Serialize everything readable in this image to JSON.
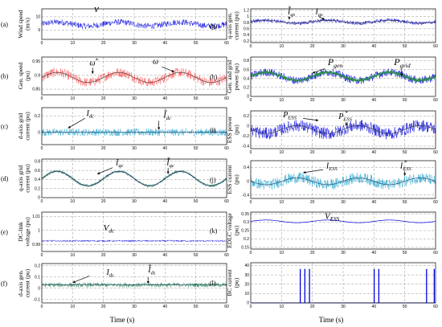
{
  "x_axis_label": "Time (s)",
  "x_ticks": [
    "0",
    "10",
    "20",
    "30",
    "40",
    "50",
    "60"
  ],
  "chart_data": [
    {
      "type": "line",
      "panel": "(a)",
      "ylabel": [
        "Wind speed",
        "(m/s)"
      ],
      "yticks": [
        "9",
        "10"
      ],
      "ylim": [
        8.3,
        10.6
      ],
      "xlim": [
        0,
        60
      ],
      "grid": true,
      "series": [
        {
          "label": "v",
          "color": "#0000dd",
          "base": 9.45,
          "amp": 0.15,
          "period": 20,
          "phase": 0,
          "noise": 0.45,
          "lw": 0.45
        }
      ],
      "annotations": [
        {
          "main": "v",
          "sup": "",
          "sub": "",
          "at": [
            17,
            10.35
          ],
          "size": 13
        }
      ],
      "arrows": []
    },
    {
      "type": "line",
      "panel": "(b)",
      "ylabel": [
        "Gen. speed",
        "(pu)"
      ],
      "yticks": [
        "0.85",
        "0.9",
        "0.95"
      ],
      "ylim": [
        0.83,
        0.965
      ],
      "xlim": [
        0,
        60
      ],
      "grid": true,
      "series": [
        {
          "label": "ω",
          "color": "#ff5050",
          "base": 0.892,
          "amp": 0.018,
          "period": 20,
          "phase": 0,
          "noise": 0.034,
          "lw": 0.45
        },
        {
          "label": "ω*",
          "color": "#333333",
          "base": 0.892,
          "amp": 0.018,
          "period": 20,
          "phase": 0,
          "noise": 0.0,
          "lw": 0.6
        }
      ],
      "annotations": [
        {
          "main": "ω",
          "sup": "*",
          "sub": "",
          "at": [
            15.5,
            0.935
          ],
          "size": 10
        },
        {
          "main": "ω",
          "sup": "",
          "sub": "",
          "at": [
            36,
            0.94
          ],
          "size": 10
        }
      ],
      "arrows": [
        {
          "from": [
            16.5,
            0.927
          ],
          "to": [
            16.5,
            0.905
          ]
        },
        {
          "from": [
            39,
            0.93
          ],
          "to": [
            43,
            0.912
          ]
        }
      ]
    },
    {
      "type": "line",
      "panel": "(c)",
      "ylabel": [
        "d-axis grid",
        "current (pu)"
      ],
      "yticks": [
        "0.2",
        "0"
      ],
      "ylim": [
        -0.15,
        0.3
      ],
      "xlim": [
        0,
        60
      ],
      "grid": true,
      "series": [
        {
          "label": "I_dc",
          "color": "#2aa9cf",
          "base": 0.0,
          "amp": 0.0,
          "period": 20,
          "phase": 0,
          "noise": 0.09,
          "lw": 0.45
        },
        {
          "label": "I_dc*",
          "color": "#1a3a6a",
          "base": 0.0,
          "amp": 0.0,
          "period": 20,
          "phase": 0,
          "noise": 0.0,
          "lw": 0.6
        }
      ],
      "annotations": [
        {
          "main": "I",
          "sup": "",
          "sub": "dc",
          "at": [
            14.5,
            0.2
          ],
          "size": 10
        },
        {
          "main": "I",
          "sup": "*",
          "sub": "dc",
          "at": [
            39.5,
            0.18
          ],
          "size": 10
        }
      ],
      "arrows": [
        {
          "from": [
            14,
            0.17
          ],
          "to": [
            8.5,
            0.05
          ]
        },
        {
          "from": [
            38,
            0.14
          ],
          "to": [
            38,
            0.03
          ]
        }
      ]
    },
    {
      "type": "line",
      "panel": "(d)",
      "ylabel": [
        "q-axis grid",
        "current (pu)"
      ],
      "yticks": [
        "0.8",
        "0.6",
        "0.4",
        "0.2",
        "0"
      ],
      "ylim": [
        0,
        0.85
      ],
      "xlim": [
        0,
        60
      ],
      "grid": true,
      "series": [
        {
          "label": "I_qc",
          "color": "#2e8b57",
          "base": 0.42,
          "amp": 0.16,
          "period": 20,
          "phase": 0,
          "noise": 0.07,
          "lw": 0.45
        },
        {
          "label": "I_qc*",
          "color": "#1a3a6a",
          "base": 0.42,
          "amp": 0.16,
          "period": 20,
          "phase": 0,
          "noise": 0.0,
          "lw": 0.9
        }
      ],
      "annotations": [
        {
          "main": "I",
          "sup": "",
          "sub": "qc",
          "at": [
            24,
            0.72
          ],
          "size": 10
        },
        {
          "main": "I",
          "sup": "*",
          "sub": "qc",
          "at": [
            40.5,
            0.72
          ],
          "size": 10
        }
      ],
      "arrows": [
        {
          "from": [
            23,
            0.66
          ],
          "to": [
            18,
            0.52
          ]
        },
        {
          "from": [
            41,
            0.66
          ],
          "to": [
            41,
            0.52
          ]
        }
      ]
    },
    {
      "type": "line",
      "panel": "(e)",
      "ylabel": [
        "DC-link",
        "voltage (pu)"
      ],
      "yticks": [
        "1.01",
        "1",
        "0.99"
      ],
      "ylim": [
        0.985,
        1.013
      ],
      "xlim": [
        0,
        60
      ],
      "grid": true,
      "series": [
        {
          "label": "V_dc",
          "color": "#0000dd",
          "base": 0.9925,
          "amp": 0.0,
          "period": 20,
          "phase": 0,
          "noise": 0.0012,
          "lw": 0.45
        }
      ],
      "annotations": [
        {
          "main": "V",
          "sup": "",
          "sub": "dc",
          "at": [
            20,
            1.0
          ],
          "size": 11
        }
      ],
      "arrows": []
    },
    {
      "type": "line",
      "panel": "(f)",
      "ylabel": [
        "d-axis gen.",
        "current (pu)"
      ],
      "yticks": [
        "0.2",
        "0.1",
        "0",
        "-0.1"
      ],
      "ylim": [
        -0.13,
        0.22
      ],
      "xlim": [
        0,
        60
      ],
      "grid": true,
      "series": [
        {
          "label": "I_ds",
          "color": "#2e8b57",
          "base": 0.03,
          "amp": 0.0,
          "period": 20,
          "phase": 0,
          "noise": 0.04,
          "lw": 0.45
        },
        {
          "label": "I_ds*",
          "color": "#1a3a6a",
          "base": 0.03,
          "amp": 0.0,
          "period": 20,
          "phase": 0,
          "noise": 0.0,
          "lw": 0.6
        }
      ],
      "annotations": [
        {
          "main": "I",
          "sup": "",
          "sub": "ds",
          "at": [
            21,
            0.12
          ],
          "size": 10
        },
        {
          "main": "I",
          "sup": "*",
          "sub": "ds",
          "at": [
            34.5,
            0.14
          ],
          "size": 10
        }
      ],
      "arrows": [
        {
          "from": [
            15.5,
            0.11
          ],
          "to": [
            10,
            0.05
          ]
        },
        {
          "from": [
            34.5,
            0.1
          ],
          "to": [
            34.5,
            0.04
          ]
        }
      ]
    },
    {
      "type": "line",
      "panel": "(g)",
      "ylabel": [
        "q-axis gen.",
        "current (pu)"
      ],
      "yticks": [
        "1.2",
        "1",
        "0.8",
        "0.6",
        "0.4",
        "0.2"
      ],
      "ylim": [
        0.15,
        1.25
      ],
      "xlim": [
        0,
        60
      ],
      "grid": true,
      "series": [
        {
          "label": "I_qs",
          "color": "#0000dd",
          "base": 0.83,
          "amp": 0.05,
          "period": 20,
          "phase": 0,
          "noise": 0.12,
          "lw": 0.45
        },
        {
          "label": "I_qs*",
          "color": "#333333",
          "base": 0.83,
          "amp": 0.05,
          "period": 20,
          "phase": 0,
          "noise": 0.0,
          "lw": 0.6
        }
      ],
      "annotations": [
        {
          "main": "I",
          "sup": "*",
          "sub": "qs",
          "at": [
            12,
            1.08
          ],
          "size": 10
        },
        {
          "main": "I",
          "sup": "",
          "sub": "qs",
          "at": [
            21,
            1.08
          ],
          "size": 10
        }
      ],
      "arrows": [
        {
          "from": [
            12.5,
            1.0
          ],
          "to": [
            12.5,
            0.9
          ]
        },
        {
          "from": [
            22,
            1.0
          ],
          "to": [
            24,
            0.9
          ]
        }
      ]
    },
    {
      "type": "line",
      "panel": "(h)",
      "ylabel": [
        "Gen. and grid",
        "power (pu)"
      ],
      "yticks": [
        "0.8",
        "0.6",
        "0.4",
        "0.2",
        "0"
      ],
      "ylim": [
        0,
        0.88
      ],
      "xlim": [
        0,
        60
      ],
      "grid": true,
      "series": [
        {
          "label": "P_gen",
          "color": "#0000dd",
          "base": 0.45,
          "amp": 0.09,
          "period": 20,
          "phase": 0,
          "noise": 0.18,
          "lw": 0.45
        },
        {
          "label": "P_grid",
          "color": "#2e8b57",
          "base": 0.45,
          "amp": 0.09,
          "period": 20,
          "phase": 0,
          "noise": 0.04,
          "lw": 1.4
        }
      ],
      "annotations": [
        {
          "main": "P",
          "sup": "",
          "sub": "gen",
          "at": [
            25,
            0.7
          ],
          "size": 12
        },
        {
          "main": "P",
          "sup": "",
          "sub": "grid",
          "at": [
            46.5,
            0.7
          ],
          "size": 12
        }
      ],
      "arrows": [
        {
          "from": [
            24,
            0.62
          ],
          "to": [
            20,
            0.52
          ]
        },
        {
          "from": [
            49,
            0.62
          ],
          "to": [
            49,
            0.45
          ]
        }
      ]
    },
    {
      "type": "line",
      "panel": "(i)",
      "ylabel": [
        "ESS power",
        "(pu)"
      ],
      "yticks": [
        "0.2",
        "0",
        "-0.2",
        "-0.4"
      ],
      "ylim": [
        -0.45,
        0.3
      ],
      "xlim": [
        0,
        60
      ],
      "grid": true,
      "series": [
        {
          "label": "P_ESS",
          "color": "#0000dd",
          "base": -0.07,
          "amp": 0.08,
          "period": 20,
          "phase": 3.14159,
          "noise": 0.24,
          "lw": 0.45
        },
        {
          "label": "P_ESS*",
          "color": "#333333",
          "base": -0.07,
          "amp": 0.08,
          "period": 20,
          "phase": 3.14159,
          "noise": 0.0,
          "lw": 0.6
        }
      ],
      "annotations": [
        {
          "main": "P",
          "sup": "",
          "sub": "ESS",
          "at": [
            10.5,
            0.17
          ],
          "size": 10
        },
        {
          "main": "P",
          "sup": "*",
          "sub": "ESS",
          "at": [
            28.5,
            0.14
          ],
          "size": 10
        }
      ],
      "arrows": [
        {
          "from": [
            17,
            0.15
          ],
          "to": [
            22,
            0.11
          ]
        },
        {
          "from": [
            31,
            0.08
          ],
          "to": [
            31,
            0.0
          ]
        }
      ]
    },
    {
      "type": "line",
      "panel": "(j)",
      "ylabel": [
        "ESS current",
        "(pu)"
      ],
      "yticks": [
        "0.4",
        "0",
        "-0.4"
      ],
      "ylim": [
        -0.5,
        0.6
      ],
      "xlim": [
        0,
        60
      ],
      "grid": true,
      "series": [
        {
          "label": "I_ESS",
          "color": "#2aa9cf",
          "base": 0.0,
          "amp": 0.1,
          "period": 20,
          "phase": 3.14159,
          "noise": 0.32,
          "lw": 0.45
        },
        {
          "label": "I_ESS*",
          "color": "#1a3a6a",
          "base": 0.0,
          "amp": 0.1,
          "period": 20,
          "phase": 3.14159,
          "noise": 0.0,
          "lw": 0.6
        }
      ],
      "annotations": [
        {
          "main": "I",
          "sup": "",
          "sub": "ESS",
          "at": [
            24.5,
            0.38
          ],
          "size": 10
        },
        {
          "main": "I",
          "sup": "*",
          "sub": "ESS",
          "at": [
            48.5,
            0.38
          ],
          "size": 10
        }
      ],
      "arrows": [
        {
          "from": [
            23.5,
            0.34
          ],
          "to": [
            17,
            0.25
          ]
        },
        {
          "from": [
            50,
            0.3
          ],
          "to": [
            50,
            0.16
          ]
        }
      ]
    },
    {
      "type": "line",
      "panel": "(k)",
      "ylabel": [
        "EDLC voltage",
        "(pu)"
      ],
      "yticks": [
        "0.35",
        "0.3",
        "0.25",
        "0.2",
        "0.15"
      ],
      "ylim": [
        0.14,
        0.36
      ],
      "xlim": [
        0,
        60
      ],
      "grid": true,
      "series": [
        {
          "label": "V_ESS",
          "color": "#0000dd",
          "base": 0.305,
          "amp": 0.008,
          "period": 20,
          "phase": 0,
          "noise": 0.0,
          "lw": 0.7
        }
      ],
      "annotations": [
        {
          "main": "V",
          "sup": "",
          "sub": "ESS",
          "at": [
            24,
            0.32
          ],
          "size": 11
        }
      ],
      "arrows": []
    },
    {
      "type": "line",
      "panel": "(l)",
      "ylabel": [
        "BC current",
        "(pu)"
      ],
      "yticks": [
        "40",
        "30",
        "20",
        "10",
        "0"
      ],
      "ylim": [
        0,
        43
      ],
      "xlim": [
        0,
        60
      ],
      "grid": true,
      "series": [
        {
          "label": "BC current",
          "color": "#0000dd",
          "pulses": [
            16,
            17.5,
            19,
            40,
            41.5,
            57,
            59.5
          ],
          "height": 36,
          "lw": 0.7
        }
      ],
      "annotations": [],
      "arrows": []
    }
  ]
}
